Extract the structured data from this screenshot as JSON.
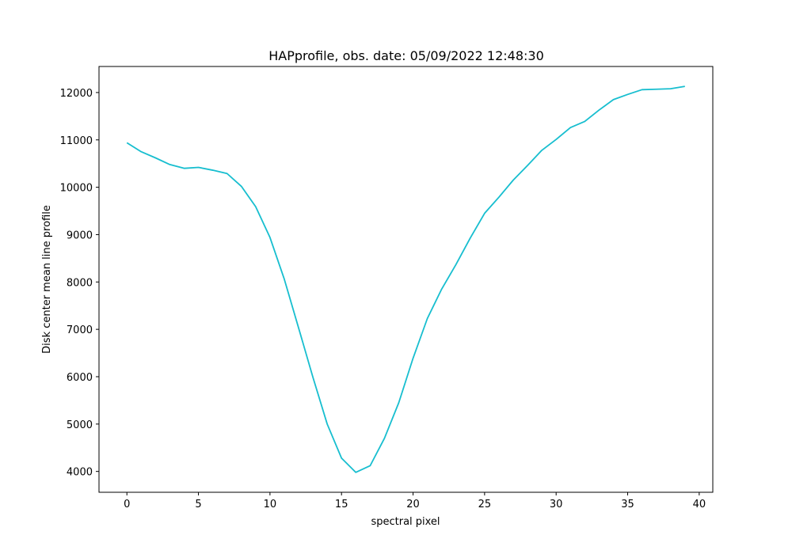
{
  "chart_data": {
    "type": "line",
    "title": "HAPprofile, obs. date: 05/09/2022 12:48:30",
    "xlabel": "spectral pixel",
    "ylabel": "Disk center mean line profile",
    "xlim": [
      -1.95,
      40.95
    ],
    "ylim": [
      3560,
      12550
    ],
    "xticks": [
      0,
      5,
      10,
      15,
      20,
      25,
      30,
      35,
      40
    ],
    "yticks": [
      4000,
      5000,
      6000,
      7000,
      8000,
      9000,
      10000,
      11000,
      12000
    ],
    "grid": false,
    "line_color": "#17becf",
    "series": [
      {
        "x": [
          0,
          1,
          2,
          3,
          4,
          5,
          6,
          7,
          8,
          9,
          10,
          11,
          12,
          13,
          14,
          15,
          16,
          17,
          18,
          19,
          20,
          21,
          22,
          23,
          24,
          25,
          26,
          27,
          28,
          29,
          30,
          31,
          32,
          33,
          34,
          35,
          36,
          37,
          38,
          39
        ],
        "values": [
          10940,
          10750,
          10620,
          10480,
          10400,
          10420,
          10360,
          10290,
          10020,
          9590,
          8940,
          8060,
          7030,
          5990,
          5000,
          4280,
          3980,
          4120,
          4700,
          5450,
          6390,
          7230,
          7850,
          8370,
          8930,
          9450,
          9790,
          10150,
          10460,
          10780,
          11010,
          11260,
          11390,
          11630,
          11850,
          11960,
          12060,
          12070,
          12080,
          12130
        ]
      }
    ]
  }
}
